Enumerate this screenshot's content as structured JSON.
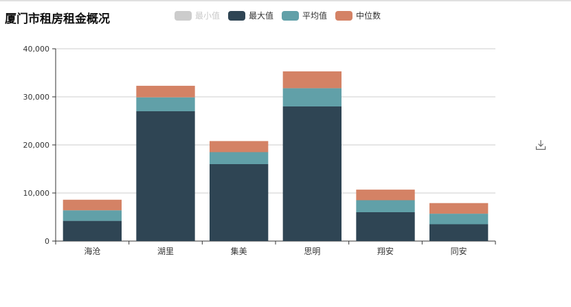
{
  "title": "厦门市租房租金概况",
  "legend": [
    {
      "name": "最小值",
      "color": "#cccccc",
      "disabled": true
    },
    {
      "name": "最大值",
      "color": "#2f4554",
      "disabled": false
    },
    {
      "name": "平均值",
      "color": "#61a0a8",
      "disabled": false
    },
    {
      "name": "中位数",
      "color": "#d48265",
      "disabled": false
    }
  ],
  "toolbox": {
    "icon": "download-icon"
  },
  "chart_data": {
    "type": "bar",
    "stacked": true,
    "categories": [
      "海沧",
      "湖里",
      "集美",
      "思明",
      "翔安",
      "同安"
    ],
    "series": [
      {
        "name": "最大值",
        "color": "#2f4554",
        "values": [
          4200,
          27000,
          16000,
          28000,
          6000,
          3500
        ]
      },
      {
        "name": "平均值",
        "color": "#61a0a8",
        "values": [
          2200,
          2900,
          2500,
          3800,
          2500,
          2200
        ]
      },
      {
        "name": "中位数",
        "color": "#d48265",
        "values": [
          2200,
          2400,
          2300,
          3500,
          2200,
          2200
        ]
      }
    ],
    "ylim": [
      0,
      40000
    ],
    "yticks": [
      0,
      10000,
      20000,
      30000,
      40000
    ],
    "ytick_labels": [
      "0",
      "10,000",
      "20,000",
      "30,000",
      "40,000"
    ],
    "grid": true
  }
}
